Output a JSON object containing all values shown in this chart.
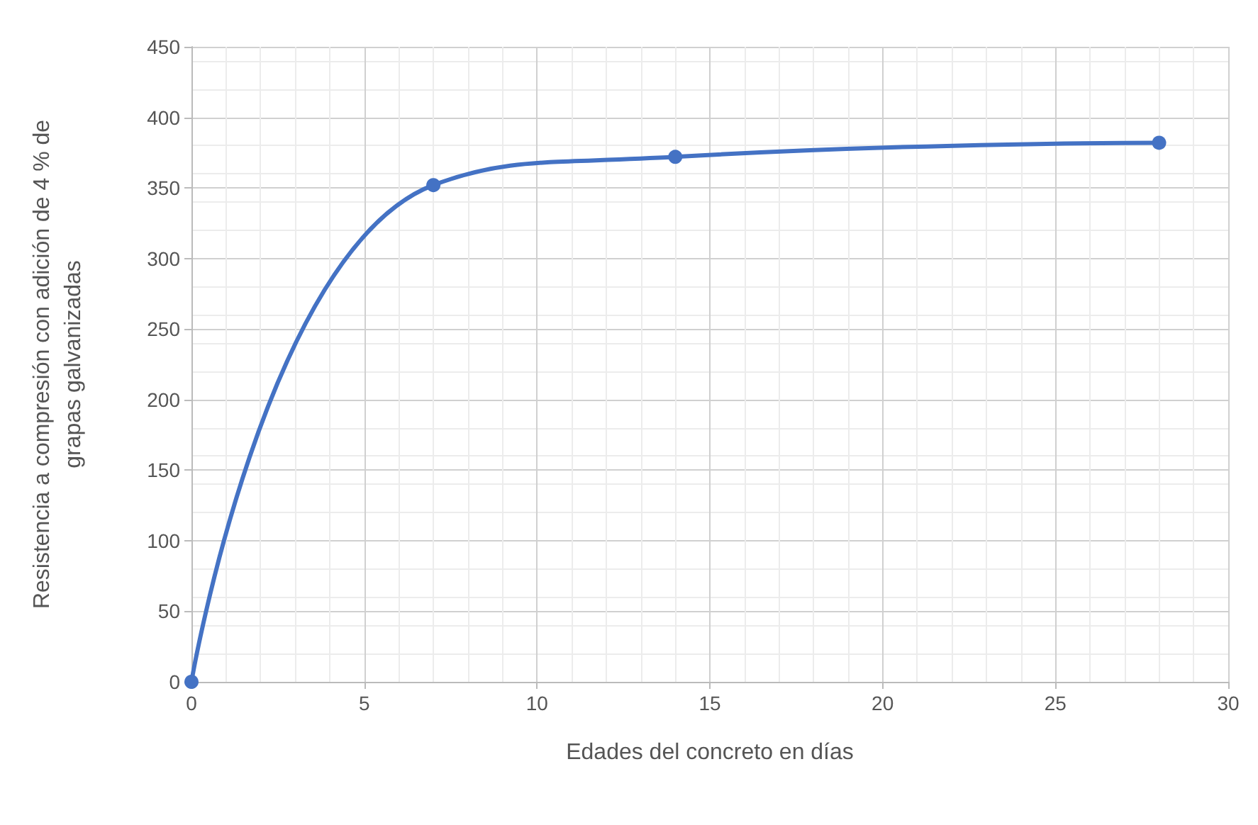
{
  "chart_data": {
    "type": "line",
    "xlabel": "Edades del concreto en días",
    "ylabel": "Resistencia a compresión con adición de 4 % de grapas galvanizadas",
    "x": [
      0,
      7,
      14,
      28
    ],
    "series": [
      {
        "color": "#4472c4",
        "values": [
          0,
          352,
          372,
          382
        ]
      }
    ],
    "xlim": [
      0,
      30
    ],
    "xticks": [
      0,
      5,
      10,
      15,
      20,
      25,
      30
    ],
    "ylim": [
      0,
      450
    ],
    "yticks": [
      0,
      50,
      100,
      150,
      200,
      250,
      300,
      350,
      400,
      450
    ],
    "grid": true,
    "marker": "circle",
    "line_style": "solid"
  }
}
